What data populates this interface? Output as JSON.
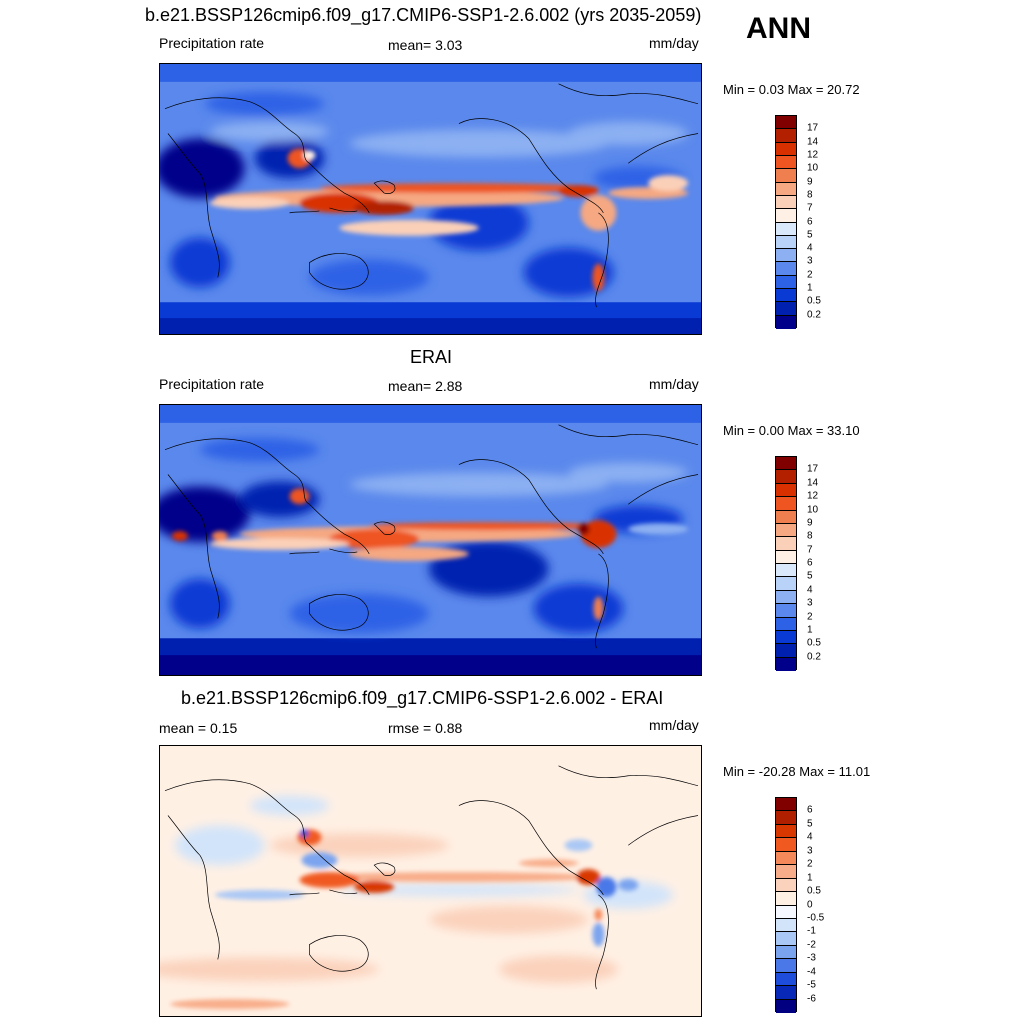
{
  "season": "ANN",
  "panels": [
    {
      "title": "b.e21.BSSP126cmip6.f09_g17.CMIP6-SSP1-2.6.002 (yrs 2035-2059)",
      "left_label": "Precipitation rate",
      "center_label": "mean=   3.03",
      "units": "mm/day",
      "minmax": "Min =   0.03 Max =  20.72",
      "colorbar": {
        "labels": [
          "17",
          "14",
          "12",
          "10",
          "9",
          "8",
          "7",
          "6",
          "5",
          "4",
          "3",
          "2",
          "1",
          "0.5",
          "0.2"
        ],
        "colors": [
          "#800000",
          "#b22000",
          "#d93000",
          "#ee5520",
          "#f07f50",
          "#f5a882",
          "#fbd0b8",
          "#fff0e6",
          "#d9e8fb",
          "#b8d2f8",
          "#8cb0f2",
          "#5a88ec",
          "#2e62e6",
          "#0a3ad4",
          "#0020b0",
          "#00008a"
        ]
      }
    },
    {
      "title": "ERAI",
      "left_label": "Precipitation rate",
      "center_label": "mean=   2.88",
      "units": "mm/day",
      "minmax": "Min =   0.00 Max =  33.10",
      "colorbar": {
        "labels": [
          "17",
          "14",
          "12",
          "10",
          "9",
          "8",
          "7",
          "6",
          "5",
          "4",
          "3",
          "2",
          "1",
          "0.5",
          "0.2"
        ],
        "colors": [
          "#800000",
          "#b22000",
          "#d93000",
          "#ee5520",
          "#f07f50",
          "#f5a882",
          "#fbd0b8",
          "#fff0e6",
          "#d9e8fb",
          "#b8d2f8",
          "#8cb0f2",
          "#5a88ec",
          "#2e62e6",
          "#0a3ad4",
          "#0020b0",
          "#00008a"
        ]
      }
    },
    {
      "title": "b.e21.BSSP126cmip6.f09_g17.CMIP6-SSP1-2.6.002 - ERAI",
      "left_label": "mean =   0.15",
      "center_label": "rmse =   0.88",
      "units": "mm/day",
      "minmax": "Min = -20.28 Max =  11.01",
      "colorbar": {
        "labels": [
          "6",
          "5",
          "4",
          "3",
          "2",
          "1",
          "0.5",
          "0",
          "-0.5",
          "-1",
          "-2",
          "-3",
          "-4",
          "-5",
          "-6"
        ],
        "colors": [
          "#800000",
          "#b02000",
          "#d83800",
          "#f05a20",
          "#f5895a",
          "#f8ad8a",
          "#fbd2bc",
          "#fff0e4",
          "#f6f8ff",
          "#d2e4fa",
          "#aac8f5",
          "#7ba4ef",
          "#4a78e8",
          "#1e4cdb",
          "#0828b8",
          "#000080"
        ]
      }
    }
  ]
}
